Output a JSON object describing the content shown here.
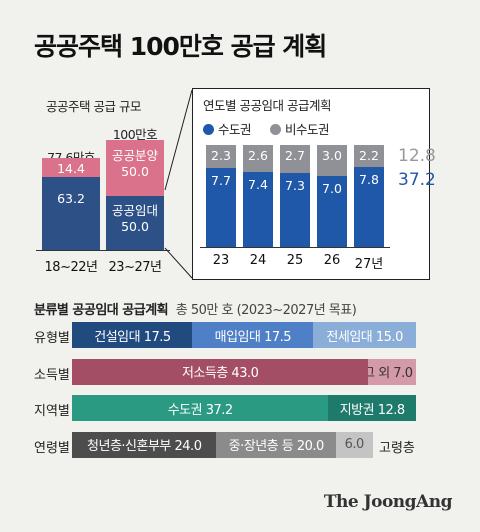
{
  "title": "공공주택 100만호 공급 계획",
  "colors": {
    "navy": "#2d5187",
    "pink": "#d9728a",
    "gray": "#8f9197",
    "blue": "#1f58a8",
    "darkblue": "#214a7f",
    "midblue": "#4f7fc6",
    "lightblue": "#8aaed8",
    "maroon": "#a44e66",
    "pinklight": "#d59aaa",
    "teal": "#2a9a83",
    "tealdark": "#1e7a6a",
    "charcoal": "#4d4d4d",
    "graymid": "#8b8b8b",
    "graylight": "#c4c4c4"
  },
  "chart_data": [
    {
      "type": "bar",
      "title": "공공주택 공급 규모",
      "categories": [
        "18~22년",
        "23~27년"
      ],
      "totals": [
        "77.6만호",
        "100만호"
      ],
      "series": [
        {
          "name": "공공임대",
          "values": [
            63.2,
            50.0
          ],
          "labels": [
            "63.2",
            "50.0"
          ]
        },
        {
          "name": "공공분양",
          "values": [
            14.4,
            50.0
          ],
          "labels": [
            "14.4",
            "50.0"
          ]
        }
      ],
      "ylim": [
        0,
        100
      ]
    },
    {
      "type": "bar",
      "title": "연도별 공공임대 공급계획",
      "categories": [
        "23",
        "24",
        "25",
        "26",
        "27년"
      ],
      "series": [
        {
          "name": "수도권",
          "values": [
            7.7,
            7.4,
            7.3,
            7.0,
            7.8
          ]
        },
        {
          "name": "비수도권",
          "values": [
            2.3,
            2.6,
            2.7,
            3.0,
            2.2
          ]
        }
      ],
      "totals": {
        "비수도권": "12.8",
        "수도권": "37.2"
      },
      "ylim": [
        0,
        10
      ]
    },
    {
      "type": "bar",
      "title": "분류별 공공임대 공급계획",
      "subtitle": "총 50만 호 (2023~2027년 목표)",
      "rows": [
        {
          "label": "유형별",
          "segments": [
            {
              "name": "건설임대",
              "value": 17.5,
              "text": "건설임대 17.5"
            },
            {
              "name": "매입임대",
              "value": 17.5,
              "text": "매입임대 17.5"
            },
            {
              "name": "전세임대",
              "value": 15.0,
              "text": "전세임대 15.0"
            }
          ]
        },
        {
          "label": "소득별",
          "segments": [
            {
              "name": "저소득층",
              "value": 43.0,
              "text": "저소득층 43.0"
            },
            {
              "name": "그 외",
              "value": 7.0,
              "text": "그 외 7.0"
            }
          ]
        },
        {
          "label": "지역별",
          "segments": [
            {
              "name": "수도권",
              "value": 37.2,
              "text": "수도권 37.2"
            },
            {
              "name": "지방권",
              "value": 12.8,
              "text": "지방권 12.8"
            }
          ]
        },
        {
          "label": "연령별",
          "segments": [
            {
              "name": "청년층·신혼부부",
              "value": 24.0,
              "text": "청년층·신혼부부 24.0"
            },
            {
              "name": "중·장년층 등",
              "value": 20.0,
              "text": "중·장년층 등 20.0"
            },
            {
              "name": "고령층",
              "value": 6.0,
              "text": "6.0"
            }
          ],
          "outside_label": "고령층"
        }
      ],
      "xlim": [
        0,
        50
      ]
    }
  ],
  "source": "The JoongAng"
}
